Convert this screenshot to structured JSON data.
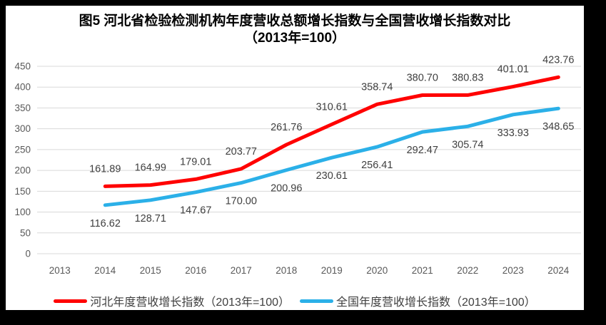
{
  "frame": {
    "background": "#000000",
    "chart_background": "#ffffff"
  },
  "title": {
    "line1": "图5  河北省检验检测机构年度营收总额增长指数与全国营收增长指数对比",
    "line2": "（2013年=100）"
  },
  "colors": {
    "gridline": "#D9D9D9",
    "axis_text": "#595959",
    "data_label_text": "#3F3F3F",
    "title_text": "#000000",
    "legend_text": "#404040",
    "hebei_red": "#FF0000",
    "national_blue": "#2BB0E8"
  },
  "chart_data": {
    "type": "line",
    "title": "图5 河北省检验检测机构年度营收总额增长指数与全国营收增长指数对比（2013年=100）",
    "categories": [
      "2013",
      "2014",
      "2015",
      "2016",
      "2017",
      "2018",
      "2019",
      "2020",
      "2021",
      "2022",
      "2023",
      "2024"
    ],
    "series": [
      {
        "name": "河北年度营收增长指数（2013年=100）",
        "color": "#FF0000",
        "label_position": "above",
        "values": [
          null,
          161.89,
          164.99,
          179.01,
          203.77,
          261.76,
          310.61,
          358.74,
          380.7,
          380.83,
          401.01,
          423.76
        ]
      },
      {
        "name": "全国年度营收增长指数（2013年=100）",
        "color": "#2BB0E8",
        "label_position": "below",
        "values": [
          null,
          116.62,
          128.71,
          147.67,
          170.0,
          200.96,
          230.61,
          256.41,
          292.47,
          305.74,
          333.93,
          348.65
        ]
      }
    ],
    "ylim": [
      0,
      450
    ],
    "yticks": [
      0,
      50,
      100,
      150,
      200,
      250,
      300,
      350,
      400,
      450
    ],
    "grid": true,
    "legend_position": "bottom",
    "data_label_decimals": 2
  }
}
